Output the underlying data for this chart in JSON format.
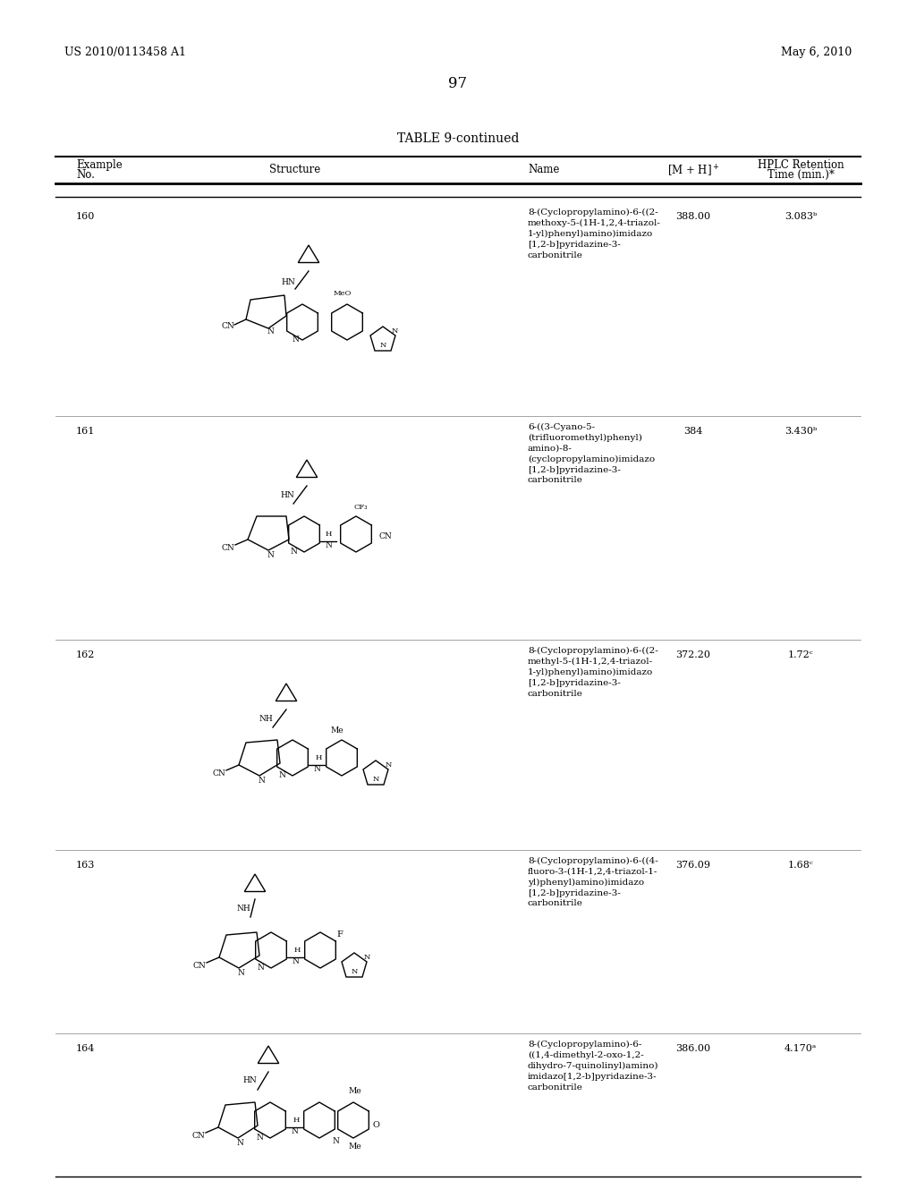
{
  "page_header_left": "US 2010/0113458 A1",
  "page_header_right": "May 6, 2010",
  "page_number": "97",
  "table_title": "TABLE 9-continued",
  "col_headers": [
    "Example\nNo.",
    "Structure",
    "Name",
    "[M + H]⁺",
    "HPLC Retention\nTime (min.)*"
  ],
  "rows": [
    {
      "example": "160",
      "name": "8-(Cyclopropylamino)-6-((2-\nmethoxy-5-(1H-1,2,4-triazol-\n1-yl)phenyl)amino)imidazo\n[1,2-b]pyridazine-3-\ncarbonitrile",
      "mh": "388.00",
      "hplc": "3.083ᵇ"
    },
    {
      "example": "161",
      "name": "6-((3-Cyano-5-\n(trifluoromethyl)phenyl)\namino)-8-\n(cyclopropylamino)imidazo\n[1,2-b]pyridazine-3-\ncarbonitrile",
      "mh": "384",
      "hplc": "3.430ᵇ"
    },
    {
      "example": "162",
      "name": "8-(Cyclopropylamino)-6-((2-\nmethyl-5-(1H-1,2,4-triazol-\n1-yl)phenyl)amino)imidazo\n[1,2-b]pyridazine-3-\ncarbonitrile",
      "mh": "372.20",
      "hplc": "1.72ᶜ"
    },
    {
      "example": "163",
      "name": "8-(Cyclopropylamino)-6-((4-\nfluoro-3-(1H-1,2,4-triazol-1-\nyl)phenyl)amino)imidazo\n[1,2-b]pyridazine-3-\ncarbonitrile",
      "mh": "376.09",
      "hplc": "1.68ᶜ"
    },
    {
      "example": "164",
      "name": "8-(Cyclopropylamino)-6-\n((1,4-dimethyl-2-oxo-1,2-\ndihydro-7-quinolinyl)amino)\nimidazo[1,2-b]pyridazine-3-\ncarbonitrile",
      "mh": "386.00",
      "hplc": "4.170ᵃ"
    }
  ],
  "bg_color": "#ffffff",
  "text_color": "#000000",
  "font_size_header": 8.5,
  "font_size_body": 8.0,
  "font_size_page": 9.0
}
